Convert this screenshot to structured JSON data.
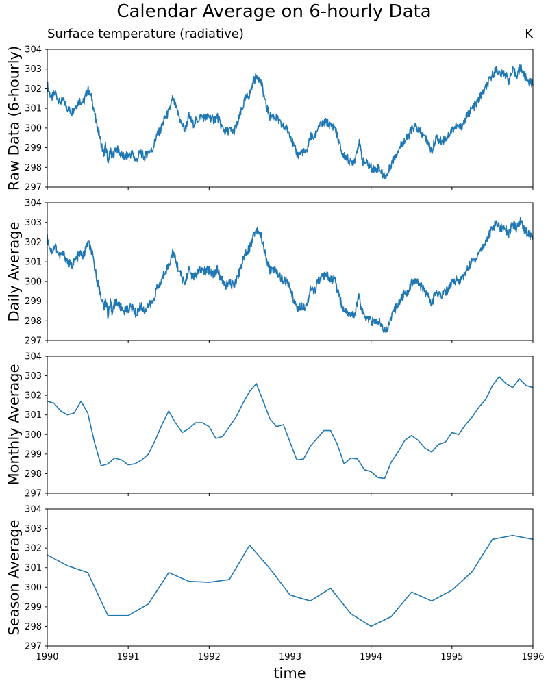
{
  "figure": {
    "title": "Calendar Average on 6-hourly Data",
    "subtitle_left": "Surface temperature (radiative)",
    "subtitle_right": "K",
    "xlabel": "time",
    "line_color": "#1f77b4"
  },
  "chart_data": [
    {
      "type": "line",
      "ylabel": "Raw Data (6-hourly)",
      "xlim": [
        1990,
        1996
      ],
      "ylim": [
        297,
        304
      ],
      "yticks": [
        297,
        298,
        299,
        300,
        301,
        302,
        303,
        304
      ],
      "xticks": [
        1990,
        1991,
        1992,
        1993,
        1994,
        1995,
        1996
      ],
      "x": [
        1990.0,
        1990.05,
        1990.1,
        1990.15,
        1990.2,
        1990.25,
        1990.3,
        1990.35,
        1990.4,
        1990.45,
        1990.5,
        1990.55,
        1990.6,
        1990.65,
        1990.7,
        1990.72,
        1990.75,
        1990.78,
        1990.8,
        1990.85,
        1990.9,
        1990.95,
        1991.0,
        1991.05,
        1991.1,
        1991.15,
        1991.2,
        1991.25,
        1991.3,
        1991.35,
        1991.4,
        1991.45,
        1991.5,
        1991.55,
        1991.6,
        1991.65,
        1991.7,
        1991.75,
        1991.8,
        1991.85,
        1991.9,
        1991.95,
        1992.0,
        1992.05,
        1992.1,
        1992.15,
        1992.2,
        1992.25,
        1992.3,
        1992.35,
        1992.4,
        1992.45,
        1992.5,
        1992.55,
        1992.6,
        1992.65,
        1992.7,
        1992.75,
        1992.8,
        1992.85,
        1992.9,
        1992.95,
        1993.0,
        1993.05,
        1993.1,
        1993.15,
        1993.2,
        1993.25,
        1993.3,
        1993.35,
        1993.4,
        1993.45,
        1993.5,
        1993.55,
        1993.6,
        1993.65,
        1993.7,
        1993.75,
        1993.8,
        1993.85,
        1993.9,
        1993.95,
        1994.0,
        1994.05,
        1994.1,
        1994.15,
        1994.2,
        1994.25,
        1994.3,
        1994.35,
        1994.4,
        1994.45,
        1994.5,
        1994.55,
        1994.6,
        1994.65,
        1994.7,
        1994.75,
        1994.8,
        1994.85,
        1994.9,
        1994.95,
        1995.0,
        1995.05,
        1995.1,
        1995.15,
        1995.2,
        1995.25,
        1995.3,
        1995.35,
        1995.4,
        1995.45,
        1995.5,
        1995.55,
        1995.6,
        1995.65,
        1995.7,
        1995.75,
        1995.8,
        1995.85,
        1995.9,
        1995.95,
        1996.0
      ],
      "values": [
        302.2,
        301.5,
        301.8,
        301.3,
        301.4,
        301.0,
        300.8,
        301.1,
        301.4,
        301.3,
        302.0,
        301.5,
        300.4,
        299.5,
        298.6,
        299.1,
        298.3,
        298.9,
        298.5,
        299.0,
        298.7,
        298.5,
        298.6,
        298.7,
        298.3,
        298.8,
        298.5,
        298.8,
        298.9,
        299.6,
        299.9,
        300.5,
        300.8,
        301.5,
        300.9,
        300.3,
        299.9,
        300.6,
        300.2,
        300.4,
        300.6,
        300.5,
        300.6,
        300.4,
        300.6,
        300.1,
        299.8,
        299.9,
        299.8,
        300.2,
        300.9,
        301.5,
        301.7,
        302.4,
        302.7,
        302.2,
        301.2,
        300.6,
        300.6,
        300.4,
        300.1,
        300.0,
        299.7,
        299.0,
        298.6,
        298.8,
        298.7,
        299.6,
        299.5,
        300.1,
        300.2,
        300.3,
        300.1,
        300.1,
        299.3,
        298.6,
        298.5,
        298.2,
        298.4,
        299.3,
        298.3,
        298.2,
        298.0,
        297.9,
        298.0,
        297.6,
        297.6,
        298.2,
        298.6,
        299.0,
        299.3,
        299.5,
        299.9,
        300.1,
        299.8,
        299.6,
        299.3,
        298.8,
        299.5,
        299.3,
        299.4,
        299.6,
        299.9,
        300.1,
        300.0,
        300.3,
        300.7,
        301.0,
        301.2,
        301.6,
        301.9,
        302.3,
        302.7,
        303.0,
        302.7,
        302.8,
        302.4,
        302.9,
        302.7,
        303.1,
        302.6,
        302.4,
        302.2
      ],
      "series": [
        {
          "name": "",
          "style": "noisy"
        }
      ]
    },
    {
      "type": "line",
      "ylabel": "Daily Average",
      "xlim": [
        1990,
        1996
      ],
      "ylim": [
        297,
        304
      ],
      "yticks": [
        297,
        298,
        299,
        300,
        301,
        302,
        303,
        304
      ],
      "xticks": [
        1990,
        1991,
        1992,
        1993,
        1994,
        1995,
        1996
      ],
      "x": [
        1990.0,
        1990.05,
        1990.1,
        1990.15,
        1990.2,
        1990.25,
        1990.3,
        1990.35,
        1990.4,
        1990.45,
        1990.5,
        1990.55,
        1990.6,
        1990.65,
        1990.7,
        1990.72,
        1990.75,
        1990.78,
        1990.8,
        1990.85,
        1990.9,
        1990.95,
        1991.0,
        1991.05,
        1991.1,
        1991.15,
        1991.2,
        1991.25,
        1991.3,
        1991.35,
        1991.4,
        1991.45,
        1991.5,
        1991.55,
        1991.6,
        1991.65,
        1991.7,
        1991.75,
        1991.8,
        1991.85,
        1991.9,
        1991.95,
        1992.0,
        1992.05,
        1992.1,
        1992.15,
        1992.2,
        1992.25,
        1992.3,
        1992.35,
        1992.4,
        1992.45,
        1992.5,
        1992.55,
        1992.6,
        1992.65,
        1992.7,
        1992.75,
        1992.8,
        1992.85,
        1992.9,
        1992.95,
        1993.0,
        1993.05,
        1993.1,
        1993.15,
        1993.2,
        1993.25,
        1993.3,
        1993.35,
        1993.4,
        1993.45,
        1993.5,
        1993.55,
        1993.6,
        1993.65,
        1993.7,
        1993.75,
        1993.8,
        1993.85,
        1993.9,
        1993.95,
        1994.0,
        1994.05,
        1994.1,
        1994.15,
        1994.2,
        1994.25,
        1994.3,
        1994.35,
        1994.4,
        1994.45,
        1994.5,
        1994.55,
        1994.6,
        1994.65,
        1994.7,
        1994.75,
        1994.8,
        1994.85,
        1994.9,
        1994.95,
        1995.0,
        1995.05,
        1995.1,
        1995.15,
        1995.2,
        1995.25,
        1995.3,
        1995.35,
        1995.4,
        1995.45,
        1995.5,
        1995.55,
        1995.6,
        1995.65,
        1995.7,
        1995.75,
        1995.8,
        1995.85,
        1995.9,
        1995.95,
        1996.0
      ],
      "values": [
        302.2,
        301.5,
        301.8,
        301.3,
        301.4,
        301.0,
        300.8,
        301.1,
        301.4,
        301.3,
        302.0,
        301.5,
        300.4,
        299.5,
        298.6,
        299.1,
        298.3,
        298.9,
        298.5,
        299.0,
        298.7,
        298.5,
        298.6,
        298.7,
        298.3,
        298.8,
        298.5,
        298.8,
        298.9,
        299.6,
        299.9,
        300.5,
        300.8,
        301.5,
        300.9,
        300.3,
        299.9,
        300.6,
        300.2,
        300.4,
        300.6,
        300.5,
        300.6,
        300.4,
        300.6,
        300.1,
        299.8,
        299.9,
        299.8,
        300.2,
        300.9,
        301.5,
        301.7,
        302.4,
        302.7,
        302.2,
        301.2,
        300.6,
        300.6,
        300.4,
        300.1,
        300.0,
        299.7,
        299.0,
        298.6,
        298.8,
        298.7,
        299.6,
        299.5,
        300.1,
        300.2,
        300.3,
        300.1,
        300.1,
        299.3,
        298.6,
        298.5,
        298.2,
        298.4,
        299.3,
        298.3,
        298.2,
        298.0,
        297.9,
        298.0,
        297.6,
        297.6,
        298.2,
        298.6,
        299.0,
        299.3,
        299.5,
        299.9,
        300.1,
        299.8,
        299.6,
        299.3,
        298.8,
        299.5,
        299.3,
        299.4,
        299.6,
        299.9,
        300.1,
        300.0,
        300.3,
        300.7,
        301.0,
        301.2,
        301.6,
        301.9,
        302.3,
        302.7,
        303.0,
        302.7,
        302.8,
        302.4,
        302.9,
        302.7,
        303.1,
        302.6,
        302.4,
        302.2
      ],
      "series": [
        {
          "name": "",
          "style": "noisy"
        }
      ]
    },
    {
      "type": "line",
      "ylabel": "Monthly Average",
      "xlim": [
        1990,
        1996
      ],
      "ylim": [
        297,
        304
      ],
      "yticks": [
        297,
        298,
        299,
        300,
        301,
        302,
        303,
        304
      ],
      "xticks": [
        1990,
        1991,
        1992,
        1993,
        1994,
        1995,
        1996
      ],
      "x": [
        1990.0,
        1990.083,
        1990.167,
        1990.25,
        1990.333,
        1990.417,
        1990.5,
        1990.583,
        1990.667,
        1990.75,
        1990.833,
        1990.917,
        1991.0,
        1991.083,
        1991.167,
        1991.25,
        1991.333,
        1991.417,
        1991.5,
        1991.583,
        1991.667,
        1991.75,
        1991.833,
        1991.917,
        1992.0,
        1992.083,
        1992.167,
        1992.25,
        1992.333,
        1992.417,
        1992.5,
        1992.583,
        1992.667,
        1992.75,
        1992.833,
        1992.917,
        1993.0,
        1993.083,
        1993.167,
        1993.25,
        1993.333,
        1993.417,
        1993.5,
        1993.583,
        1993.667,
        1993.75,
        1993.833,
        1993.917,
        1994.0,
        1994.083,
        1994.167,
        1994.25,
        1994.333,
        1994.417,
        1994.5,
        1994.583,
        1994.667,
        1994.75,
        1994.833,
        1994.917,
        1995.0,
        1995.083,
        1995.167,
        1995.25,
        1995.333,
        1995.417,
        1995.5,
        1995.583,
        1995.667,
        1995.75,
        1995.833,
        1995.917,
        1996.0
      ],
      "values": [
        301.7,
        301.6,
        301.2,
        301.0,
        301.1,
        301.7,
        301.1,
        299.6,
        298.4,
        298.5,
        298.8,
        298.7,
        298.45,
        298.5,
        298.7,
        299.0,
        299.7,
        300.5,
        301.2,
        300.6,
        300.1,
        300.3,
        300.6,
        300.6,
        300.4,
        299.8,
        299.9,
        300.4,
        300.9,
        301.6,
        302.2,
        302.6,
        301.7,
        300.8,
        300.4,
        300.5,
        299.6,
        298.7,
        298.75,
        299.4,
        299.8,
        300.2,
        300.2,
        299.5,
        298.5,
        298.8,
        298.75,
        298.2,
        298.1,
        297.8,
        297.75,
        298.6,
        299.1,
        299.7,
        299.95,
        299.7,
        299.3,
        299.1,
        299.5,
        299.6,
        300.1,
        300.0,
        300.5,
        300.9,
        301.4,
        301.8,
        302.5,
        302.95,
        302.6,
        302.4,
        302.85,
        302.5,
        302.4
      ],
      "series": [
        {
          "name": "",
          "style": "smooth"
        }
      ]
    },
    {
      "type": "line",
      "ylabel": "Season Average",
      "xlim": [
        1990,
        1996
      ],
      "ylim": [
        297,
        304
      ],
      "yticks": [
        297,
        298,
        299,
        300,
        301,
        302,
        303,
        304
      ],
      "xticks": [
        1990,
        1991,
        1992,
        1993,
        1994,
        1995,
        1996
      ],
      "xticklabels": [
        "1990",
        "1991",
        "1992",
        "1993",
        "1994",
        "1995",
        "1996"
      ],
      "x": [
        1990.0,
        1990.25,
        1990.5,
        1990.75,
        1991.0,
        1991.25,
        1991.5,
        1991.75,
        1992.0,
        1992.25,
        1992.5,
        1992.75,
        1993.0,
        1993.25,
        1993.5,
        1993.75,
        1994.0,
        1994.25,
        1994.5,
        1994.75,
        1995.0,
        1995.25,
        1995.5,
        1995.75,
        1996.0
      ],
      "values": [
        301.65,
        301.1,
        300.75,
        298.55,
        298.55,
        299.15,
        300.75,
        300.3,
        300.25,
        300.4,
        302.15,
        300.95,
        299.6,
        299.3,
        299.95,
        298.65,
        298.0,
        298.5,
        299.75,
        299.3,
        299.85,
        300.8,
        302.45,
        302.65,
        302.45
      ],
      "series": [
        {
          "name": "",
          "style": "smooth"
        }
      ]
    }
  ]
}
